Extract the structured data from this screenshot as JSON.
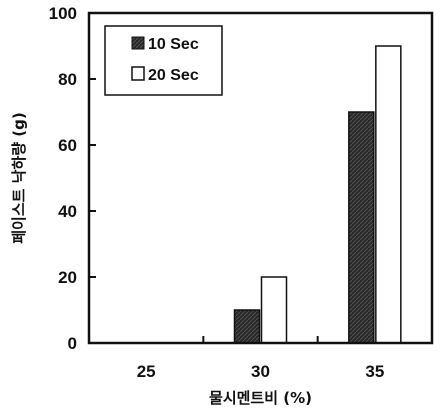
{
  "chart_data": {
    "type": "bar",
    "title": "",
    "xlabel": "물시멘트비 (%)",
    "ylabel": "페이스트 낙하량 (g)",
    "categories": [
      "25",
      "30",
      "35"
    ],
    "ylim": [
      0,
      100
    ],
    "yticks": [
      0,
      20,
      40,
      60,
      80,
      100
    ],
    "grid": false,
    "legend_position": "top-left",
    "series": [
      {
        "name": "10 Sec",
        "values": [
          0,
          10,
          70
        ],
        "color": "#222222",
        "pattern": "dark-hatched"
      },
      {
        "name": "20 Sec",
        "values": [
          0,
          20,
          90
        ],
        "color": "#ffffff",
        "pattern": "outline"
      }
    ]
  }
}
